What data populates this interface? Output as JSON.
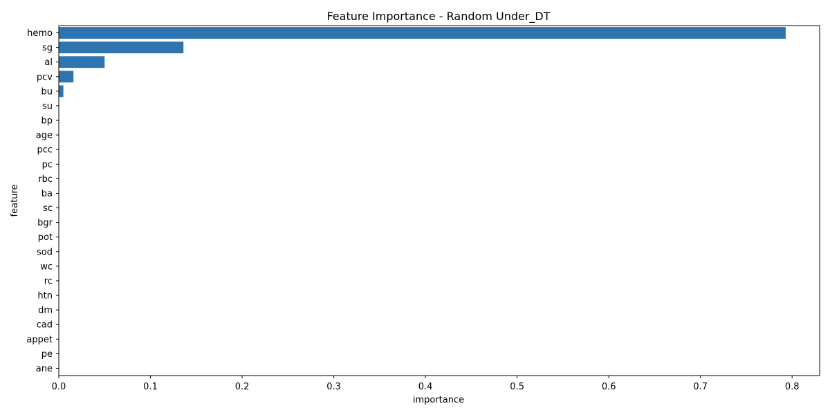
{
  "chart_data": {
    "type": "bar",
    "orientation": "horizontal",
    "title": "Feature Importance - Random Under_DT",
    "xlabel": "importance",
    "ylabel": "feature",
    "xlim": [
      0,
      0.83
    ],
    "xticks": [
      "0.0",
      "0.1",
      "0.2",
      "0.3",
      "0.4",
      "0.5",
      "0.6",
      "0.7",
      "0.8"
    ],
    "grid": false,
    "bar_color": "#2e75b0",
    "categories": [
      "hemo",
      "sg",
      "al",
      "pcv",
      "bu",
      "su",
      "bp",
      "age",
      "pcc",
      "pc",
      "rbc",
      "ba",
      "sc",
      "bgr",
      "pot",
      "sod",
      "wc",
      "rc",
      "htn",
      "dm",
      "cad",
      "appet",
      "pe",
      "ane"
    ],
    "values": [
      0.793,
      0.136,
      0.05,
      0.016,
      0.005,
      0,
      0,
      0,
      0,
      0,
      0,
      0,
      0,
      0,
      0,
      0,
      0,
      0,
      0,
      0,
      0,
      0,
      0,
      0
    ]
  }
}
